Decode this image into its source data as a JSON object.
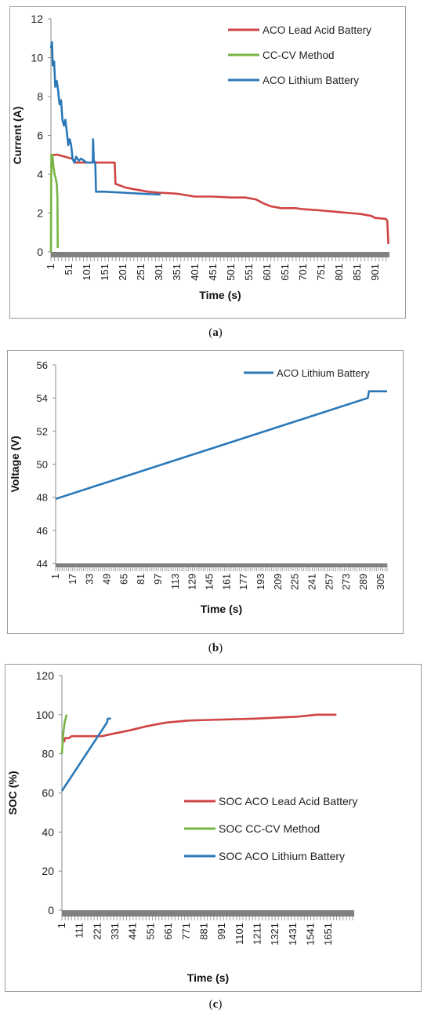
{
  "captions": {
    "a": "a",
    "b": "b",
    "c": "c"
  },
  "colors": {
    "lead": "#d04444",
    "cccv": "#78b444",
    "lithium": "#2a78b8",
    "axis_bar": "#808080",
    "grid": "#a0a0a0"
  },
  "chart_data": [
    {
      "id": "a",
      "type": "line",
      "xlabel": "Time (s)",
      "ylabel": "Current (A)",
      "xlim": [
        1,
        940
      ],
      "ylim": [
        0,
        12
      ],
      "yticks": [
        0,
        2,
        4,
        6,
        8,
        10,
        12
      ],
      "xticks": [
        1,
        51,
        101,
        151,
        201,
        251,
        301,
        351,
        401,
        451,
        501,
        551,
        601,
        651,
        701,
        751,
        801,
        851,
        901
      ],
      "legend_position": "top-right",
      "series": [
        {
          "name": "ACO Lead Acid Battery",
          "color_key": "lead",
          "points": [
            [
              1,
              5.0
            ],
            [
              5,
              5.0
            ],
            [
              20,
              5.0
            ],
            [
              40,
              4.9
            ],
            [
              60,
              4.8
            ],
            [
              70,
              4.6
            ],
            [
              178,
              4.6
            ],
            [
              180,
              3.5
            ],
            [
              195,
              3.4
            ],
            [
              210,
              3.3
            ],
            [
              240,
              3.2
            ],
            [
              270,
              3.1
            ],
            [
              300,
              3.05
            ],
            [
              350,
              3.0
            ],
            [
              400,
              2.85
            ],
            [
              450,
              2.85
            ],
            [
              500,
              2.8
            ],
            [
              540,
              2.8
            ],
            [
              570,
              2.7
            ],
            [
              590,
              2.5
            ],
            [
              610,
              2.35
            ],
            [
              640,
              2.25
            ],
            [
              680,
              2.25
            ],
            [
              700,
              2.2
            ],
            [
              740,
              2.15
            ],
            [
              770,
              2.1
            ],
            [
              800,
              2.05
            ],
            [
              830,
              2.0
            ],
            [
              860,
              1.95
            ],
            [
              890,
              1.85
            ],
            [
              900,
              1.75
            ],
            [
              930,
              1.7
            ],
            [
              934,
              1.6
            ],
            [
              937,
              0.4
            ]
          ]
        },
        {
          "name": "CC-CV Method",
          "color_key": "cccv",
          "points": [
            [
              1,
              0.0
            ],
            [
              2,
              5.0
            ],
            [
              5,
              5.0
            ],
            [
              8,
              4.4
            ],
            [
              11,
              4.0
            ],
            [
              14,
              3.8
            ],
            [
              17,
              3.5
            ],
            [
              19,
              2.8
            ],
            [
              20,
              0.2
            ]
          ]
        },
        {
          "name": "ACO Lithium Battery",
          "color_key": "lithium",
          "points": [
            [
              1,
              10.5
            ],
            [
              4,
              10.8
            ],
            [
              6,
              9.6
            ],
            [
              10,
              9.8
            ],
            [
              13,
              8.5
            ],
            [
              17,
              8.8
            ],
            [
              21,
              8.3
            ],
            [
              25,
              7.6
            ],
            [
              29,
              7.8
            ],
            [
              33,
              6.8
            ],
            [
              37,
              6.5
            ],
            [
              41,
              6.8
            ],
            [
              45,
              6.2
            ],
            [
              49,
              5.5
            ],
            [
              53,
              5.8
            ],
            [
              57,
              5.5
            ],
            [
              61,
              4.8
            ],
            [
              66,
              4.6
            ],
            [
              71,
              4.9
            ],
            [
              78,
              4.7
            ],
            [
              85,
              4.8
            ],
            [
              100,
              4.6
            ],
            [
              117,
              4.6
            ],
            [
              118,
              5.8
            ],
            [
              120,
              4.7
            ],
            [
              124,
              4.6
            ],
            [
              126,
              3.1
            ],
            [
              150,
              3.1
            ],
            [
              200,
              3.05
            ],
            [
              250,
              3.0
            ],
            [
              305,
              2.95
            ]
          ]
        }
      ]
    },
    {
      "id": "b",
      "type": "line",
      "xlabel": "Time (s)",
      "ylabel": "Voltage (V)",
      "xlim": [
        1,
        311
      ],
      "ylim": [
        44,
        56
      ],
      "yticks": [
        44,
        46,
        48,
        50,
        52,
        54,
        56
      ],
      "xticks": [
        1,
        17,
        33,
        49,
        65,
        81,
        97,
        113,
        129,
        145,
        161,
        177,
        193,
        209,
        225,
        241,
        257,
        273,
        289,
        305
      ],
      "legend_position": "top-right",
      "series": [
        {
          "name": "ACO Lithium Battery",
          "color_key": "lithium",
          "points": [
            [
              1,
              47.9
            ],
            [
              293,
              54.0
            ],
            [
              294,
              54.4
            ],
            [
              311,
              54.4
            ]
          ]
        }
      ]
    },
    {
      "id": "c",
      "type": "line",
      "xlabel": "Time (s)",
      "ylabel": "SOC (%)",
      "xlim": [
        1,
        1810
      ],
      "ylim": [
        0,
        120
      ],
      "yticks": [
        0,
        20,
        40,
        60,
        80,
        100,
        120
      ],
      "xticks": [
        1,
        111,
        221,
        331,
        441,
        551,
        661,
        771,
        881,
        991,
        1101,
        1211,
        1321,
        1431,
        1541,
        1651
      ],
      "legend_position": "center-right",
      "series": [
        {
          "name": "SOC ACO Lead Acid Battery",
          "color_key": "lead",
          "points": [
            [
              15,
              86
            ],
            [
              20,
              88
            ],
            [
              45,
              88
            ],
            [
              60,
              89
            ],
            [
              250,
              89
            ],
            [
              300,
              90
            ],
            [
              360,
              91
            ],
            [
              420,
              92
            ],
            [
              470,
              93
            ],
            [
              520,
              94
            ],
            [
              580,
              95
            ],
            [
              650,
              96
            ],
            [
              780,
              97
            ],
            [
              1200,
              98
            ],
            [
              1460,
              99
            ],
            [
              1580,
              100
            ],
            [
              1700,
              100
            ]
          ]
        },
        {
          "name": "SOC CC-CV Method",
          "color_key": "cccv",
          "points": [
            [
              1,
              80
            ],
            [
              5,
              85
            ],
            [
              10,
              91
            ],
            [
              18,
              96
            ],
            [
              30,
              100
            ]
          ]
        },
        {
          "name": "SOC ACO Lithium Battery",
          "color_key": "lithium",
          "points": [
            [
              1,
              61
            ],
            [
              280,
              96
            ],
            [
              285,
              98
            ],
            [
              305,
              98
            ]
          ]
        }
      ]
    }
  ]
}
